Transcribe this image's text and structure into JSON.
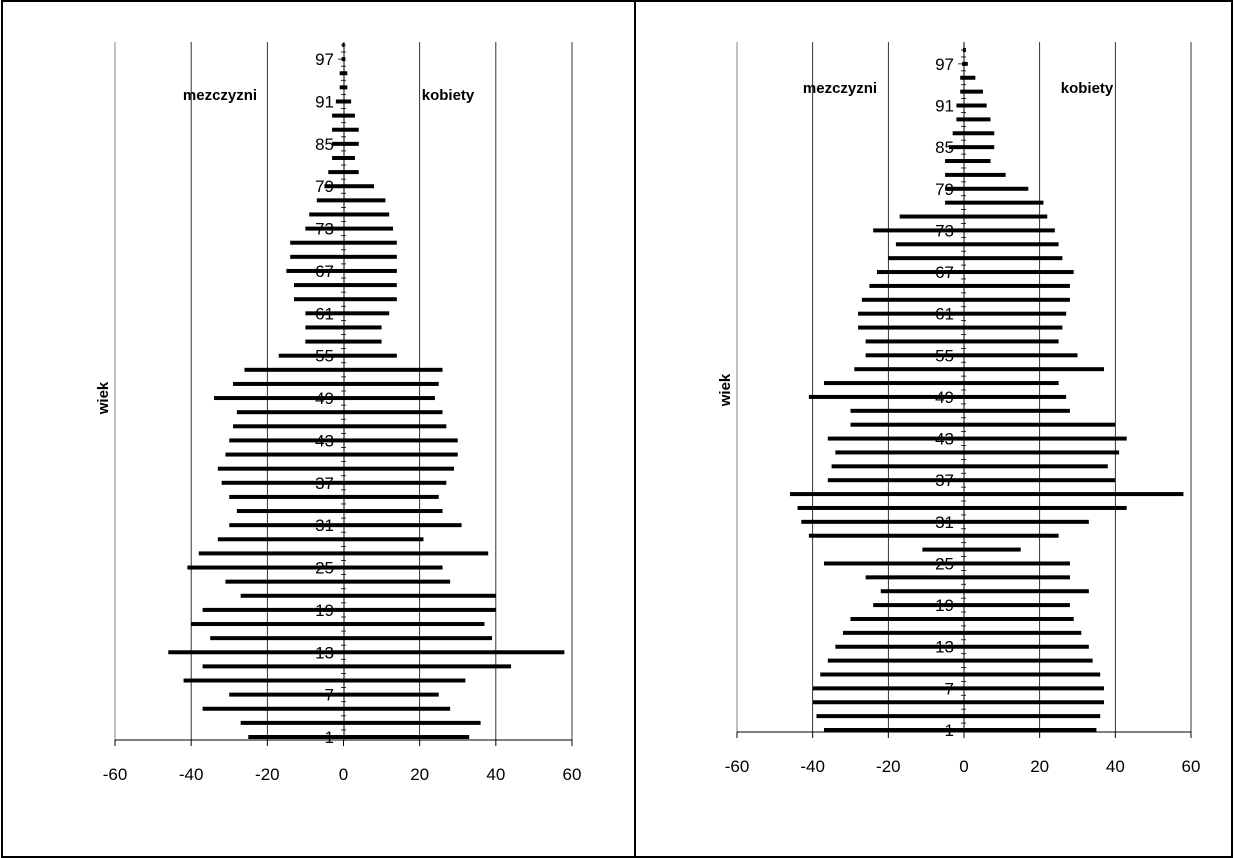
{
  "chart_data": [
    {
      "type": "bar",
      "orientation": "horizontal",
      "xlim": [
        -60,
        60
      ],
      "xticks": [
        -60,
        -40,
        -20,
        0,
        20,
        40,
        60
      ],
      "ylabel": "wiek",
      "age_tick_labels": [
        "1",
        "7",
        "13",
        "19",
        "25",
        "31",
        "37",
        "43",
        "49",
        "55",
        "61",
        "67",
        "73",
        "79",
        "85",
        "91",
        "97"
      ],
      "grid": "vertical",
      "series": [
        {
          "name": "mezczyzni",
          "ages": [
            1,
            3,
            5,
            7,
            9,
            11,
            13,
            15,
            17,
            19,
            21,
            23,
            25,
            27,
            29,
            31,
            33,
            35,
            37,
            39,
            41,
            43,
            45,
            47,
            49,
            51,
            53,
            55,
            57,
            59,
            61,
            63,
            65,
            67,
            69,
            71,
            73,
            75,
            77,
            79,
            81,
            83,
            85,
            87,
            89,
            91,
            93,
            95,
            97,
            99
          ],
          "values": [
            -25,
            -27,
            -37,
            -30,
            -42,
            -37,
            -46,
            -35,
            -40,
            -37,
            -27,
            -31,
            -41,
            -38,
            -33,
            -30,
            -28,
            -30,
            -32,
            -33,
            -31,
            -30,
            -29,
            -28,
            -34,
            -29,
            -26,
            -17,
            -10,
            -10,
            -10,
            -13,
            -13,
            -15,
            -14,
            -14,
            -10,
            -9,
            -7,
            -5,
            -4,
            -3,
            -3,
            -3,
            -3,
            -2,
            -1,
            -1,
            -0.5,
            -0.3
          ]
        },
        {
          "name": "kobiety",
          "ages": [
            1,
            3,
            5,
            7,
            9,
            11,
            13,
            15,
            17,
            19,
            21,
            23,
            25,
            27,
            29,
            31,
            33,
            35,
            37,
            39,
            41,
            43,
            45,
            47,
            49,
            51,
            53,
            55,
            57,
            59,
            61,
            63,
            65,
            67,
            69,
            71,
            73,
            75,
            77,
            79,
            81,
            83,
            85,
            87,
            89,
            91,
            93,
            95,
            97,
            99
          ],
          "values": [
            33,
            36,
            28,
            25,
            32,
            44,
            58,
            39,
            37,
            40,
            40,
            28,
            26,
            38,
            21,
            31,
            26,
            25,
            27,
            29,
            30,
            30,
            27,
            26,
            24,
            25,
            26,
            14,
            10,
            10,
            12,
            14,
            14,
            14,
            14,
            14,
            13,
            12,
            11,
            8,
            4,
            3,
            4,
            4,
            3,
            2,
            1,
            1,
            0.5,
            0.3
          ]
        }
      ]
    },
    {
      "type": "bar",
      "orientation": "horizontal",
      "xlim": [
        -60,
        60
      ],
      "xticks": [
        -60,
        -40,
        -20,
        0,
        20,
        40,
        60
      ],
      "ylabel": "wiek",
      "age_tick_labels": [
        "1",
        "7",
        "13",
        "19",
        "25",
        "31",
        "37",
        "43",
        "49",
        "55",
        "61",
        "67",
        "73",
        "79",
        "85",
        "91",
        "97"
      ],
      "grid": "vertical",
      "series": [
        {
          "name": "mezczyzni",
          "ages": [
            1,
            3,
            5,
            7,
            9,
            11,
            13,
            15,
            17,
            19,
            21,
            23,
            25,
            27,
            29,
            31,
            33,
            35,
            37,
            39,
            41,
            43,
            45,
            47,
            49,
            51,
            53,
            55,
            57,
            59,
            61,
            63,
            65,
            67,
            69,
            71,
            73,
            75,
            77,
            79,
            81,
            83,
            85,
            87,
            89,
            91,
            93,
            95,
            97,
            99
          ],
          "values": [
            -37,
            -39,
            -40,
            -40,
            -38,
            -36,
            -34,
            -32,
            -30,
            -24,
            -22,
            -26,
            -37,
            -11,
            -41,
            -43,
            -44,
            -46,
            -36,
            -35,
            -34,
            -36,
            -30,
            -30,
            -41,
            -37,
            -29,
            -26,
            -26,
            -28,
            -28,
            -27,
            -25,
            -23,
            -20,
            -18,
            -24,
            -17,
            -5,
            -5,
            -5,
            -5,
            -4,
            -3,
            -2,
            -2,
            -1,
            -1,
            -0.5,
            -0.3
          ]
        },
        {
          "name": "kobiety",
          "ages": [
            1,
            3,
            5,
            7,
            9,
            11,
            13,
            15,
            17,
            19,
            21,
            23,
            25,
            27,
            29,
            31,
            33,
            35,
            37,
            39,
            41,
            43,
            45,
            47,
            49,
            51,
            53,
            55,
            57,
            59,
            61,
            63,
            65,
            67,
            69,
            71,
            73,
            75,
            77,
            79,
            81,
            83,
            85,
            87,
            89,
            91,
            93,
            95,
            97,
            99
          ],
          "values": [
            35,
            36,
            37,
            37,
            36,
            34,
            33,
            31,
            29,
            28,
            33,
            28,
            28,
            15,
            25,
            33,
            43,
            58,
            40,
            38,
            41,
            43,
            40,
            28,
            27,
            25,
            37,
            30,
            25,
            26,
            27,
            28,
            28,
            29,
            26,
            25,
            24,
            22,
            21,
            17,
            11,
            7,
            8,
            8,
            7,
            6,
            5,
            3,
            1,
            0.5
          ]
        }
      ]
    }
  ],
  "left_chart": {
    "men_label": "mezczyzni",
    "women_label": "kobiety",
    "y_axis_title": "wiek"
  },
  "right_chart": {
    "men_label": "mezczyzni",
    "women_label": "kobiety",
    "y_axis_title": "wiek"
  }
}
